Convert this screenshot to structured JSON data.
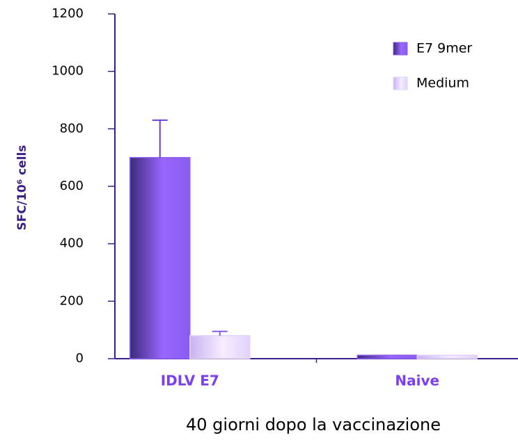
{
  "chart_data": {
    "type": "bar",
    "ylabel": "SFC/10⁶ cells",
    "xlabel": "40 giorni dopo la vaccinazione",
    "categories": [
      "IDLV E7",
      "Naive"
    ],
    "series": [
      {
        "name": "E7 9mer",
        "color": "#8a5cf0",
        "values": [
          700,
          12
        ],
        "errors": [
          130,
          null
        ]
      },
      {
        "name": "Medium",
        "color": "#e2d2fa",
        "values": [
          80,
          12
        ],
        "errors": [
          15,
          null
        ]
      }
    ],
    "ylim": [
      0,
      1200
    ],
    "yticks": [
      0,
      200,
      400,
      600,
      800,
      1000,
      1200
    ],
    "legend": "upper right"
  }
}
